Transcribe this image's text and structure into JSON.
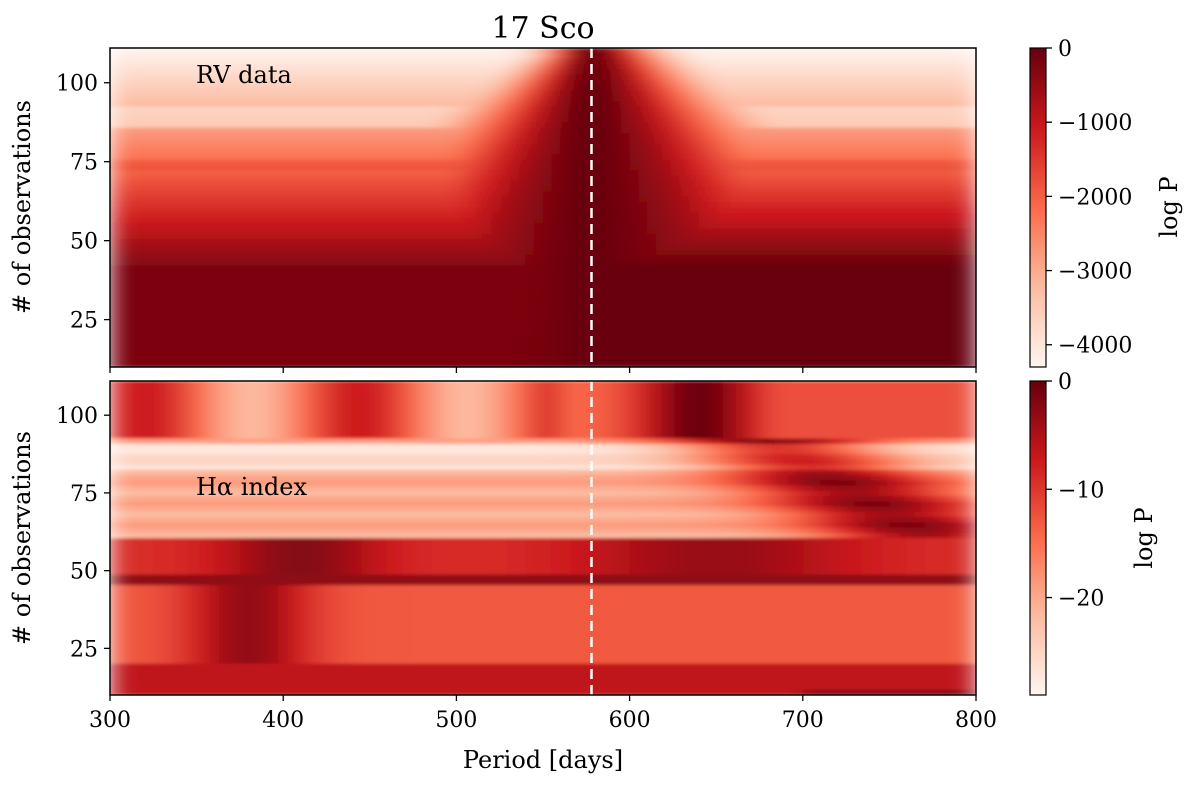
{
  "chart_data": {
    "type": "heatmap",
    "title": "17 Sco",
    "xlabel": "Period [days]",
    "xlim": [
      300,
      800
    ],
    "x_ticks": [
      "300",
      "400",
      "500",
      "600",
      "700",
      "800"
    ],
    "x_tick_values": [
      300,
      400,
      500,
      600,
      700,
      800
    ],
    "marker_period": 578,
    "colormap": [
      "#fff5f0",
      "#fcbba1",
      "#fb6a4a",
      "#cb181d",
      "#67000d"
    ],
    "panels": [
      {
        "annotation": "RV data",
        "ylabel": "# of observations",
        "ylim": [
          10,
          111
        ],
        "y_ticks": [
          "25",
          "50",
          "75",
          "100"
        ],
        "y_tick_values": [
          25,
          50,
          75,
          100
        ],
        "colorbar": {
          "label": "log P",
          "range": [
            -4300,
            0
          ],
          "ticks": [
            "0",
            "−1000",
            "−2000",
            "−3000",
            "−4000"
          ],
          "tick_values": [
            0,
            -1000,
            -2000,
            -3000,
            -4000
          ]
        }
      },
      {
        "annotation": "Hα index",
        "ylabel": "# of observations",
        "ylim": [
          10,
          111
        ],
        "y_ticks": [
          "25",
          "50",
          "75",
          "100"
        ],
        "y_tick_values": [
          25,
          50,
          75,
          100
        ],
        "colorbar": {
          "label": "log P",
          "range": [
            -29,
            0
          ],
          "ticks": [
            "0",
            "−10",
            "−20"
          ],
          "tick_values": [
            0,
            -10,
            -20
          ]
        }
      }
    ]
  }
}
